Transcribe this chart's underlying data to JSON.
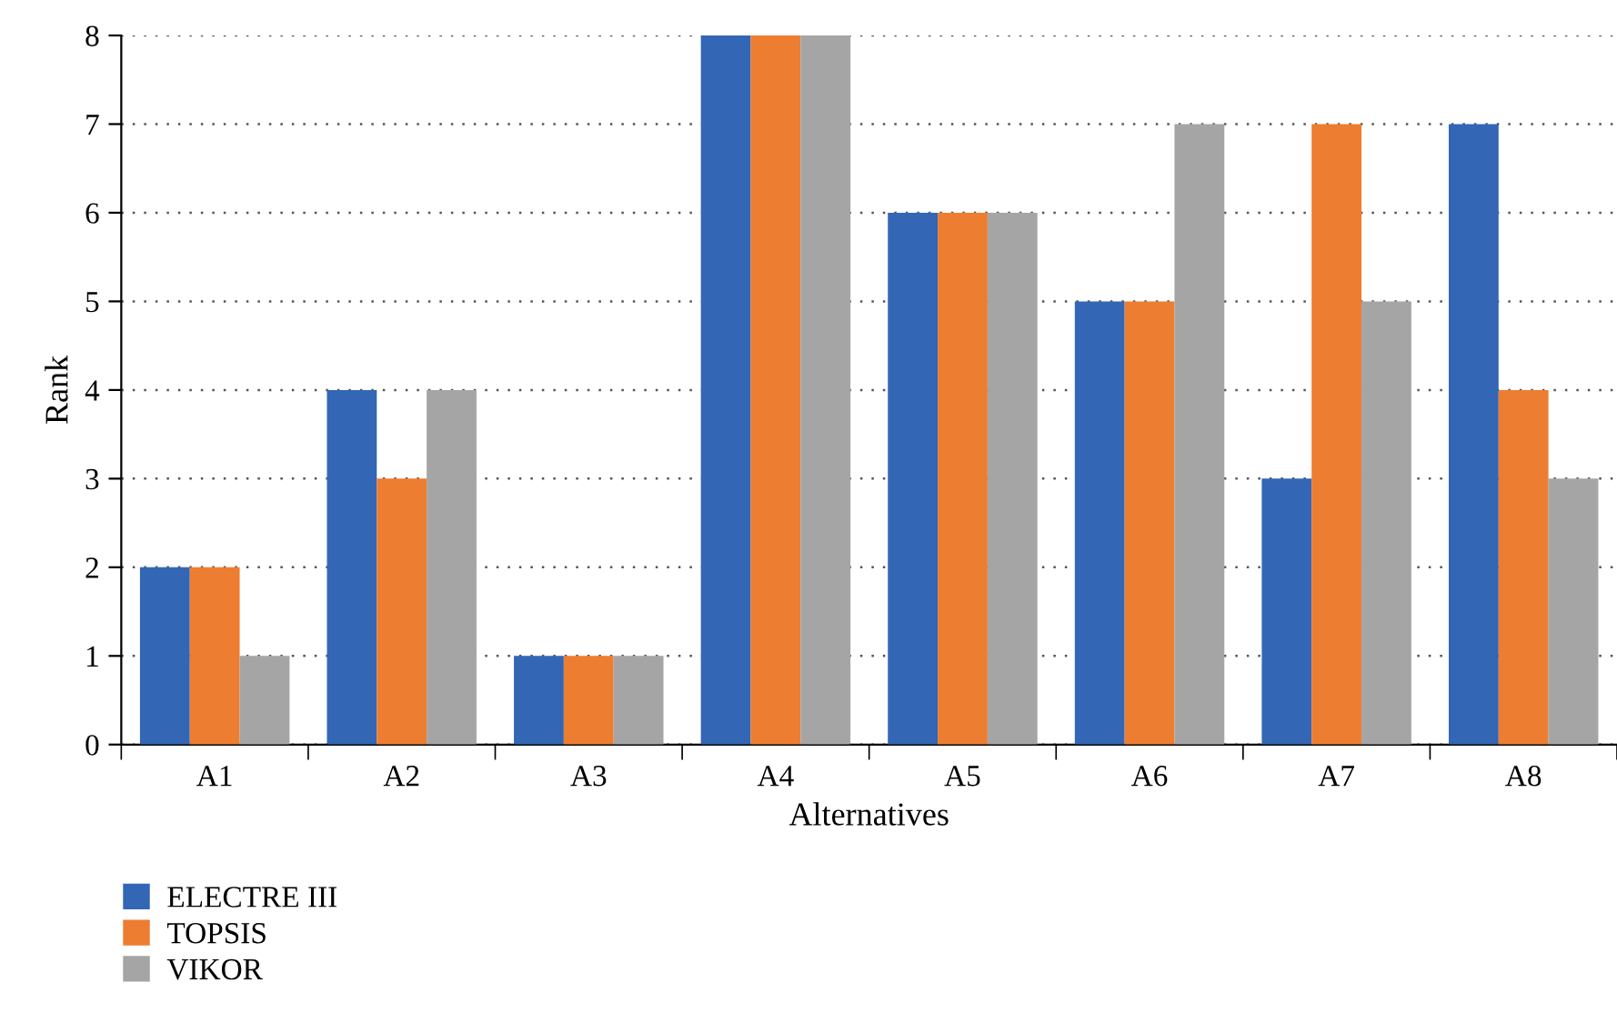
{
  "chart_data": {
    "type": "bar",
    "xlabel": "Alternatives",
    "ylabel": "Rank",
    "categories": [
      "A1",
      "A2",
      "A3",
      "A4",
      "A5",
      "A6",
      "A7",
      "A8"
    ],
    "series": [
      {
        "name": "ELECTRE III",
        "color": "#3366b5",
        "values": [
          2,
          4,
          1,
          8,
          6,
          5,
          3,
          7
        ]
      },
      {
        "name": "TOPSIS",
        "color": "#ed7d31",
        "values": [
          2,
          3,
          1,
          8,
          6,
          5,
          7,
          4
        ]
      },
      {
        "name": "VIKOR",
        "color": "#a5a5a5",
        "values": [
          1,
          4,
          1,
          8,
          6,
          7,
          5,
          3
        ]
      }
    ],
    "ylim": [
      0,
      8
    ],
    "yticks": [
      0,
      1,
      2,
      3,
      4,
      5,
      6,
      7,
      8
    ],
    "grid": "y",
    "legend": "bottom left"
  }
}
